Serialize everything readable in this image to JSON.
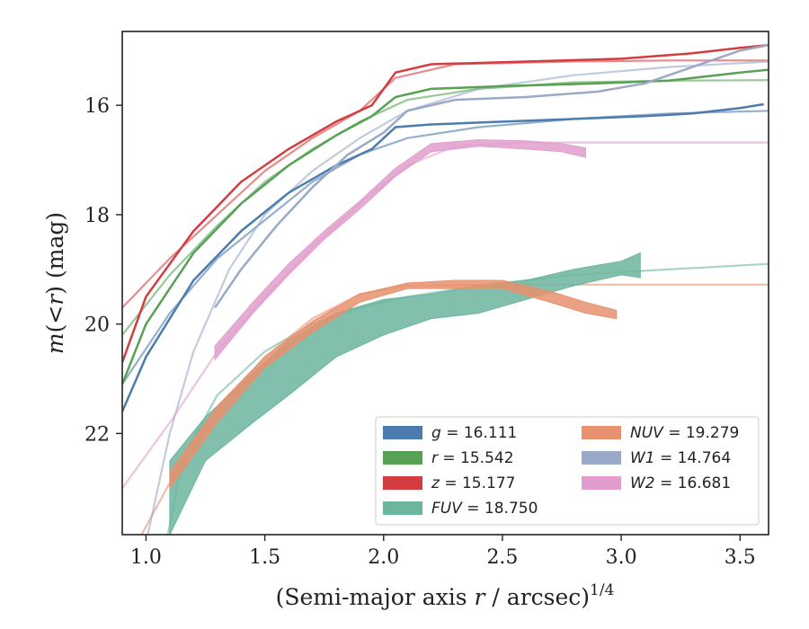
{
  "chart_data": {
    "type": "line",
    "xlabel_main": "(Semi-major axis ",
    "xlabel_var": "r",
    "xlabel_tail": " / arcsec)",
    "xlabel_sup": "1/4",
    "ylabel_m": "m",
    "ylabel_mid": "(<",
    "ylabel_r": "r",
    "ylabel_tail": ") (mag)",
    "xlim": [
      0.9,
      3.62
    ],
    "ylim": [
      23.85,
      14.65
    ],
    "y_inverted": true,
    "xticks": [
      1.0,
      1.5,
      2.0,
      2.5,
      3.0,
      3.5
    ],
    "xtick_labels": [
      "1.0",
      "1.5",
      "2.0",
      "2.5",
      "3.0",
      "3.5"
    ],
    "yticks": [
      16,
      18,
      20,
      22
    ],
    "ytick_labels": [
      "16",
      "18",
      "20",
      "22"
    ],
    "grid": false,
    "legend_position": "lower-right",
    "series": [
      {
        "band": "g",
        "value": "16.111",
        "color": "#4c7cae",
        "width": 2.5,
        "points": [
          [
            0.9,
            21.6
          ],
          [
            1.0,
            20.6
          ],
          [
            1.2,
            19.2
          ],
          [
            1.4,
            18.3
          ],
          [
            1.6,
            17.6
          ],
          [
            1.8,
            17.1
          ],
          [
            1.95,
            16.8
          ],
          [
            2.05,
            16.4
          ],
          [
            2.2,
            16.35
          ],
          [
            2.5,
            16.3
          ],
          [
            2.8,
            16.25
          ],
          [
            3.1,
            16.2
          ],
          [
            3.3,
            16.15
          ],
          [
            3.5,
            16.05
          ],
          [
            3.6,
            15.98
          ]
        ],
        "model": [
          [
            0.9,
            21.1
          ],
          [
            1.1,
            19.8
          ],
          [
            1.3,
            18.8
          ],
          [
            1.5,
            18.1
          ],
          [
            1.7,
            17.4
          ],
          [
            1.9,
            16.9
          ],
          [
            2.1,
            16.6
          ],
          [
            2.4,
            16.4
          ],
          [
            2.8,
            16.25
          ],
          [
            3.2,
            16.15
          ],
          [
            3.62,
            16.1
          ]
        ]
      },
      {
        "band": "r",
        "value": "15.542",
        "color": "#58a154",
        "width": 2.5,
        "points": [
          [
            0.9,
            21.1
          ],
          [
            1.0,
            20.0
          ],
          [
            1.2,
            18.7
          ],
          [
            1.4,
            17.8
          ],
          [
            1.6,
            17.1
          ],
          [
            1.8,
            16.55
          ],
          [
            1.95,
            16.2
          ],
          [
            2.05,
            15.85
          ],
          [
            2.2,
            15.7
          ],
          [
            2.5,
            15.65
          ],
          [
            2.9,
            15.6
          ],
          [
            3.2,
            15.55
          ],
          [
            3.5,
            15.4
          ],
          [
            3.62,
            15.35
          ]
        ],
        "model": [
          [
            0.9,
            20.2
          ],
          [
            1.1,
            19.1
          ],
          [
            1.3,
            18.2
          ],
          [
            1.5,
            17.4
          ],
          [
            1.7,
            16.8
          ],
          [
            1.9,
            16.3
          ],
          [
            2.1,
            15.9
          ],
          [
            2.4,
            15.7
          ],
          [
            2.8,
            15.58
          ],
          [
            3.2,
            15.55
          ],
          [
            3.62,
            15.54
          ]
        ]
      },
      {
        "band": "z",
        "value": "15.177",
        "color": "#d33d40",
        "width": 2.5,
        "points": [
          [
            0.9,
            20.7
          ],
          [
            1.0,
            19.5
          ],
          [
            1.2,
            18.3
          ],
          [
            1.4,
            17.4
          ],
          [
            1.6,
            16.8
          ],
          [
            1.8,
            16.3
          ],
          [
            1.95,
            16.0
          ],
          [
            2.05,
            15.4
          ],
          [
            2.2,
            15.25
          ],
          [
            2.6,
            15.2
          ],
          [
            3.0,
            15.15
          ],
          [
            3.3,
            15.05
          ],
          [
            3.5,
            14.95
          ],
          [
            3.62,
            14.9
          ]
        ],
        "model": [
          [
            0.9,
            19.7
          ],
          [
            1.1,
            18.8
          ],
          [
            1.3,
            18.0
          ],
          [
            1.5,
            17.2
          ],
          [
            1.7,
            16.6
          ],
          [
            1.9,
            16.1
          ],
          [
            2.05,
            15.5
          ],
          [
            2.3,
            15.25
          ],
          [
            2.8,
            15.2
          ],
          [
            3.2,
            15.18
          ],
          [
            3.62,
            15.18
          ]
        ]
      },
      {
        "band": "FUV",
        "value": "18.750",
        "color": "#6cb59f",
        "width": 2.5,
        "band_upper": [
          [
            1.1,
            22.5
          ],
          [
            1.25,
            21.7
          ],
          [
            1.45,
            20.9
          ],
          [
            1.6,
            20.3
          ],
          [
            1.8,
            19.8
          ],
          [
            2.0,
            19.55
          ],
          [
            2.2,
            19.45
          ],
          [
            2.4,
            19.3
          ],
          [
            2.6,
            19.2
          ],
          [
            2.8,
            19.0
          ],
          [
            3.0,
            18.85
          ],
          [
            3.08,
            18.7
          ]
        ],
        "band_lower": [
          [
            3.08,
            19.15
          ],
          [
            3.0,
            19.1
          ],
          [
            2.8,
            19.3
          ],
          [
            2.6,
            19.55
          ],
          [
            2.4,
            19.8
          ],
          [
            2.2,
            19.9
          ],
          [
            2.0,
            20.2
          ],
          [
            1.8,
            20.6
          ],
          [
            1.6,
            21.3
          ],
          [
            1.45,
            21.8
          ],
          [
            1.25,
            22.5
          ],
          [
            1.1,
            23.85
          ]
        ],
        "model": [
          [
            1.0,
            26.0
          ],
          [
            1.15,
            22.5
          ],
          [
            1.3,
            21.3
          ],
          [
            1.5,
            20.5
          ],
          [
            1.7,
            20.0
          ],
          [
            1.9,
            19.7
          ],
          [
            2.1,
            19.5
          ],
          [
            2.4,
            19.3
          ],
          [
            2.8,
            19.1
          ],
          [
            3.2,
            19.0
          ],
          [
            3.62,
            18.9
          ]
        ]
      },
      {
        "band": "NUV",
        "value": "19.279",
        "color": "#e8916e",
        "width": 2.5,
        "band_upper": [
          [
            1.1,
            22.7
          ],
          [
            1.3,
            21.5
          ],
          [
            1.5,
            20.6
          ],
          [
            1.7,
            19.95
          ],
          [
            1.9,
            19.45
          ],
          [
            2.1,
            19.25
          ],
          [
            2.3,
            19.2
          ],
          [
            2.5,
            19.2
          ],
          [
            2.7,
            19.4
          ],
          [
            2.85,
            19.6
          ],
          [
            2.98,
            19.75
          ]
        ],
        "band_lower": [
          [
            2.98,
            19.9
          ],
          [
            2.85,
            19.8
          ],
          [
            2.7,
            19.6
          ],
          [
            2.5,
            19.35
          ],
          [
            2.3,
            19.35
          ],
          [
            2.1,
            19.35
          ],
          [
            1.9,
            19.6
          ],
          [
            1.7,
            20.15
          ],
          [
            1.5,
            20.8
          ],
          [
            1.3,
            21.8
          ],
          [
            1.1,
            23.0
          ]
        ],
        "model": [
          [
            0.9,
            24.5
          ],
          [
            1.1,
            22.9
          ],
          [
            1.3,
            21.6
          ],
          [
            1.5,
            20.6
          ],
          [
            1.7,
            19.9
          ],
          [
            1.9,
            19.45
          ],
          [
            2.1,
            19.3
          ],
          [
            2.5,
            19.28
          ],
          [
            3.0,
            19.28
          ],
          [
            3.62,
            19.28
          ]
        ]
      },
      {
        "band": "W1",
        "value": "14.764",
        "color": "#9aa9c8",
        "width": 2.5,
        "points": [
          [
            1.29,
            19.7
          ],
          [
            1.4,
            19.0
          ],
          [
            1.55,
            18.2
          ],
          [
            1.7,
            17.5
          ],
          [
            1.85,
            16.9
          ],
          [
            2.0,
            16.5
          ],
          [
            2.1,
            16.1
          ],
          [
            2.3,
            15.9
          ],
          [
            2.6,
            15.85
          ],
          [
            2.9,
            15.75
          ],
          [
            3.1,
            15.6
          ],
          [
            3.3,
            15.3
          ],
          [
            3.5,
            15.0
          ],
          [
            3.62,
            14.9
          ]
        ],
        "model": [
          [
            1.0,
            24.0
          ],
          [
            1.1,
            22.0
          ],
          [
            1.2,
            20.5
          ],
          [
            1.35,
            19.0
          ],
          [
            1.5,
            18.0
          ],
          [
            1.7,
            17.2
          ],
          [
            1.9,
            16.6
          ],
          [
            2.1,
            16.1
          ],
          [
            2.4,
            15.7
          ],
          [
            2.8,
            15.45
          ],
          [
            3.2,
            15.3
          ],
          [
            3.62,
            15.2
          ]
        ]
      },
      {
        "band": "W2",
        "value": "16.681",
        "color": "#e19ecc",
        "width": 2.5,
        "band_upper": [
          [
            1.29,
            20.4
          ],
          [
            1.45,
            19.6
          ],
          [
            1.6,
            18.9
          ],
          [
            1.75,
            18.3
          ],
          [
            1.9,
            17.75
          ],
          [
            2.05,
            17.15
          ],
          [
            2.2,
            16.7
          ],
          [
            2.4,
            16.63
          ],
          [
            2.6,
            16.65
          ],
          [
            2.75,
            16.7
          ],
          [
            2.85,
            16.78
          ]
        ],
        "band_lower": [
          [
            2.85,
            16.95
          ],
          [
            2.75,
            16.85
          ],
          [
            2.6,
            16.8
          ],
          [
            2.4,
            16.75
          ],
          [
            2.2,
            16.85
          ],
          [
            2.05,
            17.3
          ],
          [
            1.9,
            17.9
          ],
          [
            1.75,
            18.45
          ],
          [
            1.6,
            19.1
          ],
          [
            1.45,
            19.8
          ],
          [
            1.29,
            20.65
          ]
        ],
        "model": [
          [
            0.9,
            23.0
          ],
          [
            1.1,
            21.8
          ],
          [
            1.3,
            20.5
          ],
          [
            1.5,
            19.5
          ],
          [
            1.7,
            18.6
          ],
          [
            1.9,
            17.8
          ],
          [
            2.1,
            17.1
          ],
          [
            2.3,
            16.75
          ],
          [
            2.6,
            16.68
          ],
          [
            3.0,
            16.68
          ],
          [
            3.62,
            16.68
          ]
        ]
      }
    ],
    "legend": {
      "left_column": [
        "g",
        "r",
        "z",
        "FUV"
      ],
      "right_column": [
        "NUV",
        "W1",
        "W2"
      ]
    }
  }
}
